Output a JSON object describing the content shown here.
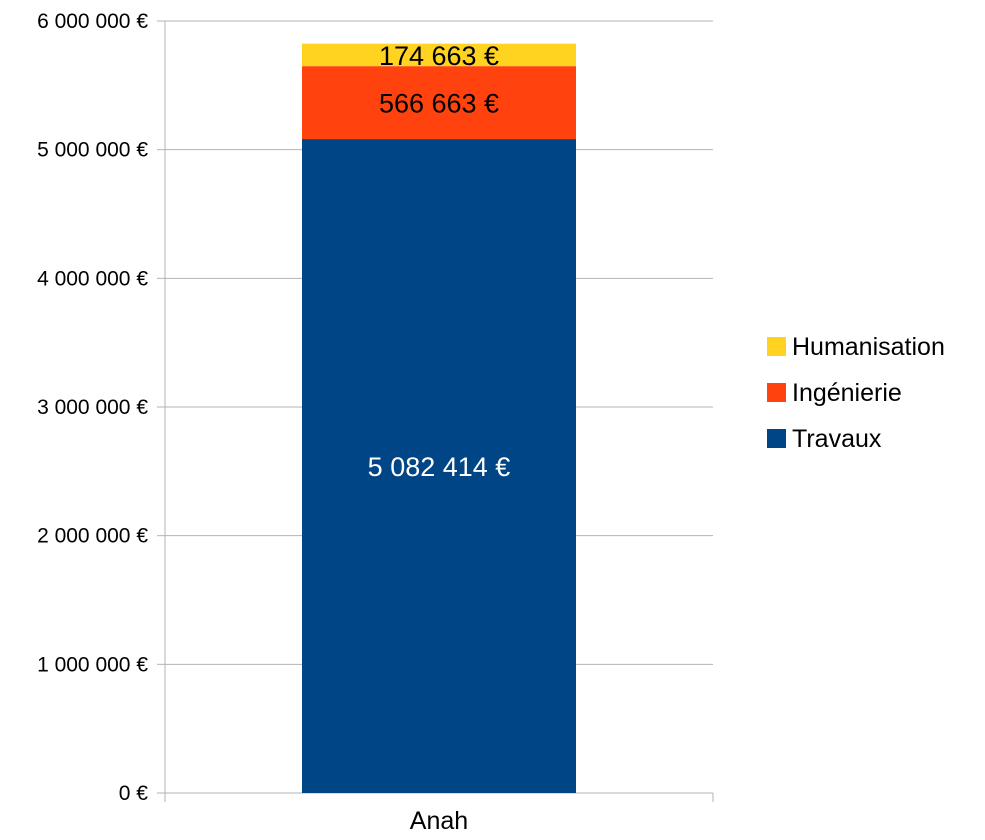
{
  "chart_data": {
    "type": "bar",
    "stacked": true,
    "categories": [
      "Anah"
    ],
    "series": [
      {
        "name": "Travaux",
        "values": [
          5082414
        ],
        "label": "5 082 414 €",
        "color": "#004586",
        "label_color": "#ffffff"
      },
      {
        "name": "Ingénierie",
        "values": [
          566663
        ],
        "label": "566 663 €",
        "color": "#ff420e",
        "label_color": "#000000"
      },
      {
        "name": "Humanisation",
        "values": [
          174663
        ],
        "label": "174 663 €",
        "color": "#ffd320",
        "label_color": "#000000"
      }
    ],
    "ylim": [
      0,
      6000000
    ],
    "yticks": [
      {
        "value": 0,
        "label": "0 €"
      },
      {
        "value": 1000000,
        "label": "1 000 000 €"
      },
      {
        "value": 2000000,
        "label": "2 000 000 €"
      },
      {
        "value": 3000000,
        "label": "3 000 000 €"
      },
      {
        "value": 4000000,
        "label": "4 000 000 €"
      },
      {
        "value": 5000000,
        "label": "5 000 000 €"
      },
      {
        "value": 6000000,
        "label": "6 000 000 €"
      }
    ],
    "grid": true,
    "legend_position": "right",
    "legend_order": [
      "Humanisation",
      "Ingénierie",
      "Travaux"
    ],
    "title": "",
    "xlabel": "",
    "ylabel": ""
  }
}
